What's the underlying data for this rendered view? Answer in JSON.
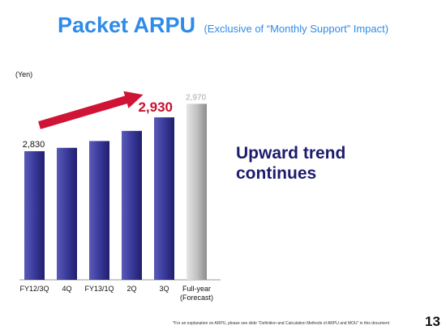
{
  "slide": {
    "title": "Packet ARPU",
    "subtitle": "(Exclusive of “Monthly Support” Impact)",
    "unit_label": "(Yen)",
    "callout_line1": "Upward trend",
    "callout_line2": "continues",
    "footnote": "*For an explanation on ARPU, please see slide “Definition and Calculation Methods of ARPU and MOU” in this document",
    "page_number": "13"
  },
  "colors": {
    "title": "#2f8bea",
    "bar_actual": "#3a3a9a",
    "bar_forecast": "#b8b8b8",
    "highlight_label": "#c8102e",
    "arrow": "#d01436",
    "callout": "#1c1c6e"
  },
  "chart_data": {
    "type": "bar",
    "categories": [
      "FY12/3Q",
      "4Q",
      "FY13/1Q",
      "2Q",
      "3Q",
      "Full-year\n(Forecast)"
    ],
    "values": [
      2830,
      2840,
      2860,
      2890,
      2930,
      2970
    ],
    "value_labels": [
      "2,830",
      "",
      "",
      "",
      "2,930",
      "2,970"
    ],
    "forecast_index": 5,
    "highlight_index": 4,
    "ylim": [
      2450,
      2990
    ],
    "ylabel": "(Yen)",
    "xlabel": "",
    "title": "Packet ARPU",
    "grid": false,
    "annotations": [
      "upward trend arrow from FY12/3Q to 3Q"
    ]
  }
}
